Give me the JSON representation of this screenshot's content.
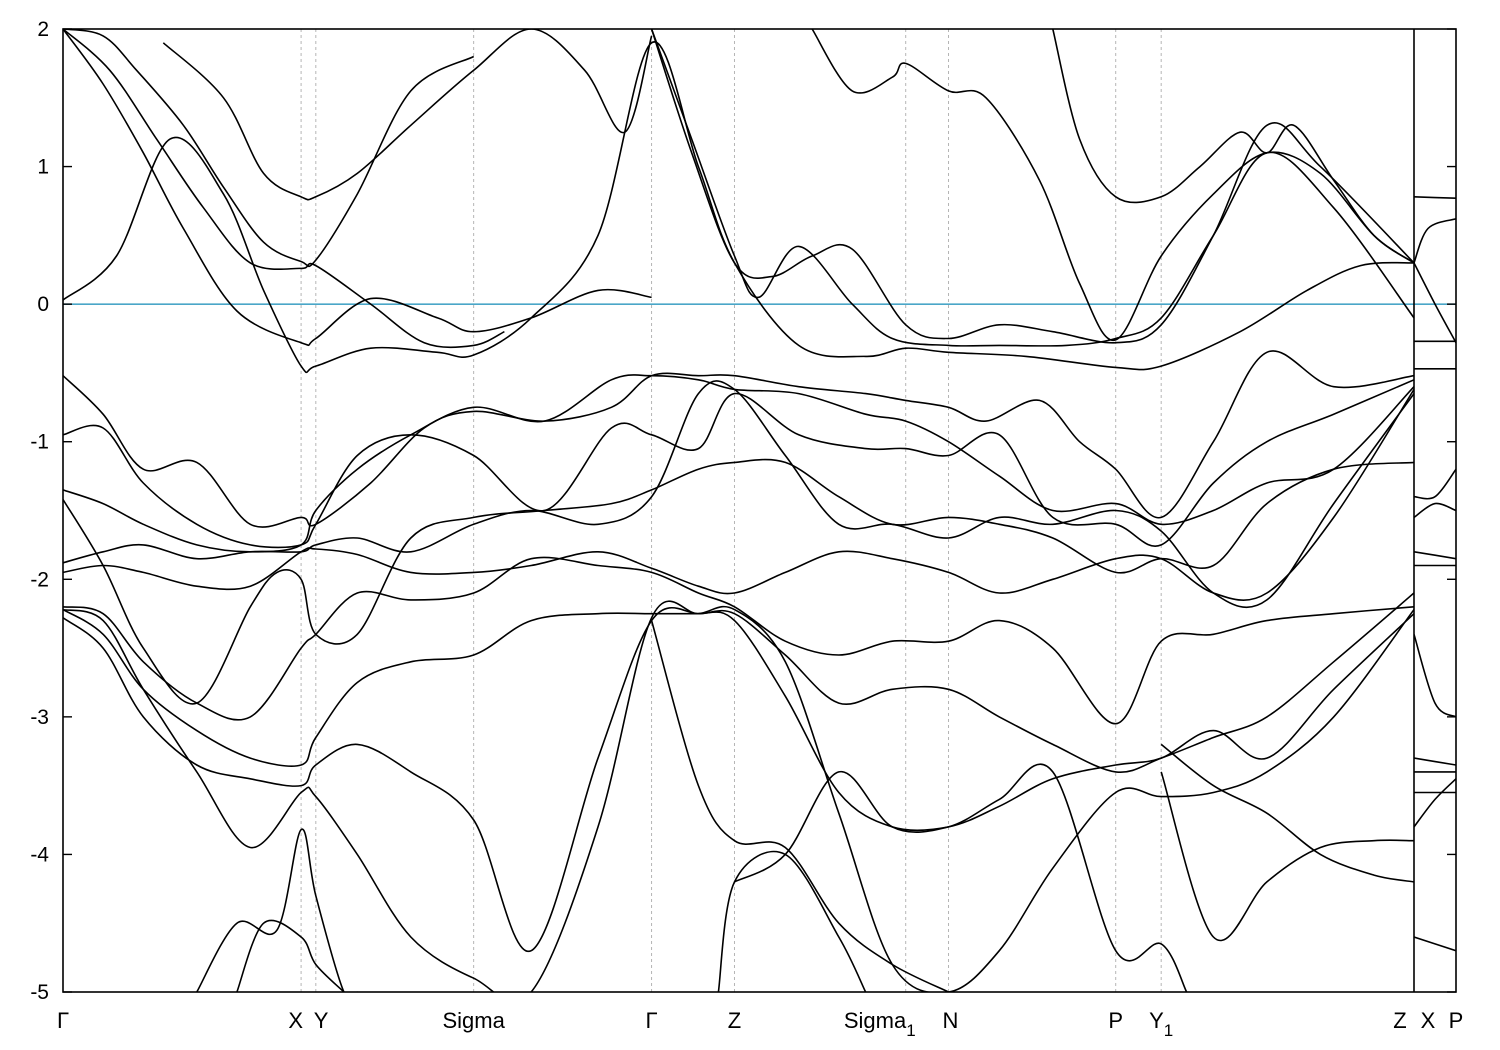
{
  "chart_data": {
    "type": "line",
    "title": "",
    "xlabel": "",
    "ylabel": "",
    "ylim": [
      -5,
      2
    ],
    "xlim": [
      0,
      10.1
    ],
    "grid": "vertical dashed lines at k-points",
    "legend": "none",
    "y_ticks": [
      2,
      1,
      0,
      -1,
      -2,
      -3,
      -4,
      -5
    ],
    "fermi_level": 0,
    "k_points": [
      {
        "name": "Γ",
        "x": 0.0
      },
      {
        "name": "X",
        "x": 1.78
      },
      {
        "name": "Y",
        "x": 1.89
      },
      {
        "name": "Sigma",
        "x": 3.07
      },
      {
        "name": "Γ",
        "x": 4.4
      },
      {
        "name": "Z",
        "x": 5.02
      },
      {
        "name": "Sigma_1",
        "x": 6.3
      },
      {
        "name": "N",
        "x": 6.62
      },
      {
        "name": "P",
        "x": 7.87
      },
      {
        "name": "Y_1",
        "x": 8.21
      },
      {
        "name": "Z",
        "x": 10.1
      }
    ],
    "segment2_points": [
      {
        "name": "X",
        "x": 10.1
      },
      {
        "name": "P",
        "x": 10.4
      }
    ],
    "series": [
      {
        "x": [
          0,
          0.3,
          0.55,
          0.9,
          1.2,
          1.5,
          1.78,
          1.89,
          2.2,
          2.6,
          3.07
        ],
        "y": [
          2.0,
          1.95,
          1.7,
          1.3,
          0.85,
          0.45,
          0.31,
          0.32,
          0.8,
          1.55,
          1.8
        ]
      },
      {
        "x": [
          0,
          0.35,
          0.7,
          1.05,
          1.4,
          1.78,
          1.89,
          2.3,
          2.7,
          3.07,
          3.3
        ],
        "y": [
          2.0,
          1.7,
          1.2,
          0.7,
          0.3,
          0.26,
          0.28,
          0.0,
          -0.28,
          -0.3,
          -0.2
        ]
      },
      {
        "x": [
          0,
          0.3,
          0.6,
          0.9,
          1.3,
          1.78,
          1.89,
          2.3,
          2.8,
          3.07,
          3.5,
          4.0,
          4.4
        ],
        "y": [
          2.0,
          1.6,
          1.1,
          0.55,
          -0.05,
          -0.28,
          -0.25,
          0.04,
          -0.1,
          -0.2,
          -0.1,
          0.1,
          0.05
        ]
      },
      {
        "x": [
          0,
          0.4,
          0.8,
          1.2,
          1.5,
          1.78,
          1.89,
          2.3,
          2.8,
          3.07,
          3.5,
          4.0,
          4.4,
          4.75,
          5.02,
          5.5,
          6.0,
          6.3,
          6.62,
          7.2,
          7.87,
          8.21,
          8.8,
          9.3,
          9.7,
          10.1
        ],
        "y": [
          0.03,
          0.35,
          1.2,
          0.8,
          0.1,
          -0.45,
          -0.45,
          -0.32,
          -0.35,
          -0.37,
          -0.1,
          0.5,
          1.9,
          1.0,
          0.3,
          -0.3,
          -0.38,
          -0.32,
          -0.35,
          -0.38,
          -0.46,
          -0.45,
          -0.2,
          0.1,
          0.28,
          0.3
        ]
      },
      {
        "x": [
          0.75,
          1.2,
          1.5,
          1.78,
          1.89,
          2.2,
          2.6,
          3.07,
          3.5,
          3.9,
          4.2,
          4.4
        ],
        "y": [
          1.9,
          1.5,
          0.95,
          0.78,
          0.78,
          0.95,
          1.3,
          1.7,
          2.0,
          1.7,
          1.25,
          1.95
        ]
      },
      {
        "x": [
          4.4,
          4.7,
          5.02,
          5.3,
          5.6,
          5.9,
          6.3,
          6.62,
          7.0,
          7.4,
          7.87,
          8.21,
          8.6,
          9.0,
          9.4,
          10.1
        ],
        "y": [
          2.0,
          1.1,
          0.3,
          0.2,
          0.35,
          0.4,
          -0.15,
          -0.25,
          -0.15,
          -0.2,
          -0.28,
          -0.15,
          0.5,
          1.3,
          1.0,
          0.3
        ]
      },
      {
        "x": [
          4.4,
          4.7,
          5.02,
          5.2,
          5.5,
          5.9,
          6.2,
          6.62,
          7.0,
          7.5,
          7.87,
          8.21,
          8.6,
          9.0,
          9.5,
          10.1
        ],
        "y": [
          2.0,
          1.2,
          0.35,
          0.05,
          0.42,
          0.0,
          -0.25,
          -0.3,
          -0.3,
          -0.3,
          -0.25,
          -0.1,
          0.5,
          1.1,
          0.7,
          -0.1
        ]
      },
      {
        "x": [
          5.6,
          5.9,
          6.2,
          6.3,
          6.62,
          6.9,
          7.3,
          7.6,
          7.87,
          8.21,
          8.6,
          9.0,
          9.4,
          9.8,
          10.1
        ],
        "y": [
          2.0,
          1.55,
          1.65,
          1.75,
          1.55,
          1.5,
          0.9,
          0.15,
          -0.26,
          0.35,
          0.8,
          1.1,
          0.95,
          0.5,
          0.3
        ]
      },
      {
        "x": [
          7.4,
          7.6,
          7.87,
          8.21,
          8.5,
          8.8,
          9.0,
          9.2,
          9.5,
          9.8,
          10.1
        ],
        "y": [
          2.0,
          1.2,
          0.78,
          0.78,
          1.0,
          1.25,
          1.1,
          1.3,
          0.9,
          0.5,
          0.3
        ]
      },
      {
        "x": [
          0,
          0.3,
          0.6,
          1.0,
          1.4,
          1.78,
          1.89,
          2.3,
          2.7,
          3.07,
          3.6,
          4.1,
          4.4,
          4.75,
          5.02,
          5.5,
          6.0,
          6.3,
          6.62,
          6.9,
          7.3,
          7.6,
          7.87,
          8.21,
          8.6,
          9.0,
          9.5,
          10.1
        ],
        "y": [
          -0.52,
          -0.8,
          -1.2,
          -1.15,
          -1.6,
          -1.55,
          -1.6,
          -1.3,
          -0.9,
          -0.78,
          -0.85,
          -0.75,
          -0.52,
          -0.52,
          -0.52,
          -0.6,
          -0.65,
          -0.7,
          -0.75,
          -0.85,
          -0.7,
          -1.0,
          -1.2,
          -1.55,
          -1.0,
          -0.35,
          -0.6,
          -0.52
        ]
      },
      {
        "x": [
          0,
          0.3,
          0.6,
          1.0,
          1.4,
          1.78,
          1.89,
          2.2,
          2.6,
          3.07,
          3.6,
          4.1,
          4.4,
          4.75,
          5.02,
          5.5,
          6.0,
          6.3,
          6.62,
          7.0,
          7.4,
          7.87,
          8.21,
          8.6,
          9.0,
          9.5,
          10.1
        ],
        "y": [
          -0.95,
          -0.9,
          -1.3,
          -1.6,
          -1.75,
          -1.75,
          -1.6,
          -1.1,
          -0.95,
          -1.1,
          -1.5,
          -0.9,
          -0.95,
          -1.05,
          -0.65,
          -0.95,
          -1.05,
          -1.05,
          -1.1,
          -0.95,
          -1.55,
          -1.6,
          -1.75,
          -1.3,
          -1.0,
          -0.8,
          -0.55
        ]
      },
      {
        "x": [
          0,
          0.3,
          0.6,
          1.0,
          1.4,
          1.78,
          1.89,
          2.2,
          2.6,
          3.07,
          3.6,
          4.1,
          4.4,
          4.75,
          5.02,
          5.5,
          6.0,
          6.3,
          6.62,
          7.0,
          7.4,
          7.87,
          8.21,
          8.6,
          9.0,
          9.5,
          10.1
        ],
        "y": [
          -1.35,
          -1.45,
          -1.6,
          -1.75,
          -1.8,
          -1.75,
          -1.5,
          -1.2,
          -0.95,
          -0.75,
          -0.85,
          -0.55,
          -0.52,
          -0.55,
          -0.62,
          -0.65,
          -0.8,
          -0.85,
          -1.0,
          -1.25,
          -1.5,
          -1.45,
          -1.6,
          -1.5,
          -1.3,
          -1.2,
          -0.6
        ]
      },
      {
        "x": [
          0,
          0.3,
          0.6,
          1.0,
          1.4,
          1.6,
          1.78,
          1.89,
          2.2,
          2.6,
          3.07,
          3.6,
          4.1,
          4.4,
          4.75,
          5.02,
          5.4,
          5.8,
          6.2,
          6.62,
          7.0,
          7.4,
          7.87,
          8.21,
          8.6,
          9.0,
          9.5,
          10.1
        ],
        "y": [
          -1.42,
          -1.9,
          -2.5,
          -2.9,
          -2.2,
          -1.95,
          -2.0,
          -2.4,
          -2.4,
          -1.7,
          -1.55,
          -1.5,
          -1.45,
          -1.35,
          -1.2,
          -1.15,
          -1.15,
          -1.4,
          -1.6,
          -1.55,
          -1.6,
          -1.7,
          -1.95,
          -1.85,
          -1.9,
          -1.45,
          -1.2,
          -1.15
        ]
      },
      {
        "x": [
          0,
          0.3,
          0.6,
          1.0,
          1.4,
          1.78,
          1.89,
          2.2,
          2.6,
          3.07,
          3.5,
          4.0,
          4.4,
          4.75,
          5.02,
          5.4,
          5.8,
          6.2,
          6.62,
          7.0,
          7.4,
          7.87,
          8.21,
          8.6,
          9.0,
          9.5,
          10.1
        ],
        "y": [
          -1.88,
          -1.8,
          -1.75,
          -1.85,
          -1.8,
          -1.8,
          -1.75,
          -1.7,
          -1.8,
          -1.6,
          -1.5,
          -1.6,
          -1.4,
          -0.65,
          -0.62,
          -1.1,
          -1.6,
          -1.6,
          -1.7,
          -1.55,
          -1.6,
          -1.5,
          -1.65,
          -2.1,
          -2.15,
          -1.45,
          -0.65
        ]
      },
      {
        "x": [
          0,
          0.3,
          0.6,
          1.0,
          1.4,
          1.78,
          1.89,
          2.2,
          2.6,
          3.07,
          3.5,
          4.0,
          4.4,
          4.75,
          5.02,
          5.4,
          5.8,
          6.2,
          6.62,
          7.0,
          7.4,
          7.87,
          8.21,
          8.6,
          9.0,
          9.5,
          10.1
        ],
        "y": [
          -1.95,
          -1.9,
          -1.95,
          -2.05,
          -2.05,
          -1.8,
          -1.78,
          -1.82,
          -1.95,
          -1.95,
          -1.9,
          -1.8,
          -1.92,
          -2.05,
          -2.1,
          -1.95,
          -1.8,
          -1.85,
          -1.95,
          -2.1,
          -2.0,
          -1.85,
          -1.85,
          -2.1,
          -2.1,
          -1.55,
          -0.62
        ]
      },
      {
        "x": [
          0,
          0.3,
          0.6,
          1.0,
          1.4,
          1.78,
          1.89,
          2.2,
          2.6,
          3.07,
          3.5,
          4.0,
          4.4,
          4.75,
          5.02,
          5.4,
          5.8,
          6.2,
          6.62,
          7.0,
          7.4,
          7.87,
          8.21,
          8.6,
          9.0,
          9.5,
          10.1
        ],
        "y": [
          -2.2,
          -2.25,
          -2.6,
          -2.9,
          -3.0,
          -2.5,
          -2.4,
          -2.1,
          -2.15,
          -2.1,
          -1.85,
          -1.9,
          -1.95,
          -2.1,
          -2.2,
          -2.45,
          -2.55,
          -2.45,
          -2.45,
          -2.3,
          -2.5,
          -3.05,
          -2.45,
          -2.4,
          -2.3,
          -2.25,
          -2.2
        ]
      },
      {
        "x": [
          0,
          0.3,
          0.6,
          1.0,
          1.4,
          1.78,
          1.89,
          2.2,
          2.6,
          3.07,
          3.5,
          4.0,
          4.4,
          4.75,
          5.02,
          5.4,
          5.8,
          6.2,
          6.62,
          7.0,
          7.4,
          7.87,
          8.21,
          8.6,
          9.0,
          9.5,
          10.1
        ],
        "y": [
          -2.22,
          -2.4,
          -2.8,
          -3.1,
          -3.3,
          -3.35,
          -3.15,
          -2.75,
          -2.6,
          -2.55,
          -2.3,
          -2.25,
          -2.25,
          -2.25,
          -2.25,
          -2.55,
          -2.9,
          -2.8,
          -2.8,
          -3.0,
          -3.2,
          -3.4,
          -3.3,
          -3.15,
          -3.0,
          -2.6,
          -2.1
        ]
      },
      {
        "x": [
          0,
          0.3,
          0.6,
          1.0,
          1.4,
          1.78,
          1.89,
          2.2,
          2.6,
          3.07,
          3.5,
          4.0,
          4.4,
          4.75,
          5.02,
          5.4,
          5.8,
          6.2,
          6.62,
          7.0,
          7.4,
          7.87,
          8.21,
          8.6,
          9.0,
          9.5,
          10.1
        ],
        "y": [
          -2.28,
          -2.5,
          -3.0,
          -3.35,
          -3.45,
          -3.5,
          -3.35,
          -3.2,
          -3.4,
          -3.75,
          -4.7,
          -3.3,
          -2.3,
          -2.25,
          -2.3,
          -2.85,
          -3.55,
          -3.8,
          -3.8,
          -3.65,
          -3.45,
          -3.35,
          -3.3,
          -3.1,
          -3.3,
          -2.8,
          -2.25
        ]
      },
      {
        "x": [
          0,
          0.3,
          0.6,
          1.0,
          1.4,
          1.78,
          1.89,
          2.2,
          2.6,
          3.07,
          3.5,
          4.0,
          4.4,
          4.75,
          5.02,
          5.4,
          5.8,
          6.2,
          6.62,
          7.0,
          7.4,
          7.87,
          8.21,
          8.6,
          9.0,
          9.5,
          10.1
        ],
        "y": [
          -2.22,
          -2.3,
          -2.8,
          -3.4,
          -3.95,
          -3.55,
          -3.58,
          -4.0,
          -4.6,
          -4.9,
          -5.0,
          -3.8,
          -2.28,
          -2.25,
          -2.22,
          -2.6,
          -3.7,
          -4.8,
          -5.0,
          -4.7,
          -4.1,
          -3.55,
          -3.58,
          -3.55,
          -3.4,
          -3.0,
          -2.22
        ]
      },
      {
        "x": [
          1.0,
          1.3,
          1.6,
          1.78,
          1.89,
          2.1,
          2.2
        ],
        "y": [
          -5.0,
          -4.5,
          -4.55,
          -3.82,
          -4.3,
          -5.0,
          -5.0
        ]
      },
      {
        "x": [
          1.3,
          1.5,
          1.78,
          1.89,
          2.1
        ],
        "y": [
          -5.0,
          -4.5,
          -4.6,
          -4.8,
          -5.0
        ]
      },
      {
        "x": [
          5.02,
          5.4,
          5.8,
          6.2,
          6.62,
          7.0,
          7.4,
          7.87,
          8.21,
          8.4
        ],
        "y": [
          -4.2,
          -4.0,
          -3.4,
          -3.8,
          -3.8,
          -3.6,
          -3.4,
          -4.7,
          -4.65,
          -5.0
        ]
      },
      {
        "x": [
          4.4,
          4.75,
          5.02,
          5.4,
          5.8,
          6.2,
          6.62
        ],
        "y": [
          -2.3,
          -3.5,
          -3.9,
          -3.95,
          -4.5,
          -4.8,
          -5.0
        ]
      },
      {
        "x": [
          4.9,
          5.02,
          5.4,
          5.8,
          6.0
        ],
        "y": [
          -5.0,
          -4.2,
          -4.0,
          -4.6,
          -5.0
        ]
      },
      {
        "x": [
          8.21,
          8.6,
          9.0,
          9.4,
          9.8,
          10.1
        ],
        "y": [
          -3.4,
          -4.6,
          -4.2,
          -3.95,
          -3.9,
          -3.9
        ]
      },
      {
        "x": [
          8.21,
          8.6,
          9.0,
          9.4,
          9.8,
          10.1
        ],
        "y": [
          -3.2,
          -3.5,
          -3.7,
          -4.0,
          -4.15,
          -4.2
        ]
      }
    ],
    "series_segment2": [
      {
        "x": [
          10.1,
          10.4
        ],
        "y": [
          0.78,
          0.77
        ]
      },
      {
        "x": [
          10.1,
          10.2,
          10.4
        ],
        "y": [
          0.3,
          0.55,
          0.62
        ]
      },
      {
        "x": [
          10.1,
          10.25,
          10.4
        ],
        "y": [
          0.3,
          0.0,
          -0.28
        ]
      },
      {
        "x": [
          10.1,
          10.4
        ],
        "y": [
          -0.27,
          -0.27
        ]
      },
      {
        "x": [
          10.1,
          10.4
        ],
        "y": [
          -0.47,
          -0.47
        ]
      },
      {
        "x": [
          10.1,
          10.25,
          10.4
        ],
        "y": [
          -1.4,
          -1.4,
          -1.2
        ]
      },
      {
        "x": [
          10.1,
          10.25,
          10.4
        ],
        "y": [
          -1.55,
          -1.45,
          -1.5
        ]
      },
      {
        "x": [
          10.1,
          10.4
        ],
        "y": [
          -1.8,
          -1.85
        ]
      },
      {
        "x": [
          10.1,
          10.4
        ],
        "y": [
          -1.9,
          -1.9
        ]
      },
      {
        "x": [
          10.1,
          10.25,
          10.4
        ],
        "y": [
          -2.4,
          -2.9,
          -3.0
        ]
      },
      {
        "x": [
          10.1,
          10.4
        ],
        "y": [
          -3.3,
          -3.35
        ]
      },
      {
        "x": [
          10.1,
          10.4
        ],
        "y": [
          -3.4,
          -3.4
        ]
      },
      {
        "x": [
          10.1,
          10.4
        ],
        "y": [
          -3.55,
          -3.55
        ]
      },
      {
        "x": [
          10.1,
          10.25,
          10.4
        ],
        "y": [
          -3.8,
          -3.6,
          -3.45
        ]
      },
      {
        "x": [
          10.1,
          10.4
        ],
        "y": [
          -4.6,
          -4.7
        ]
      }
    ]
  }
}
